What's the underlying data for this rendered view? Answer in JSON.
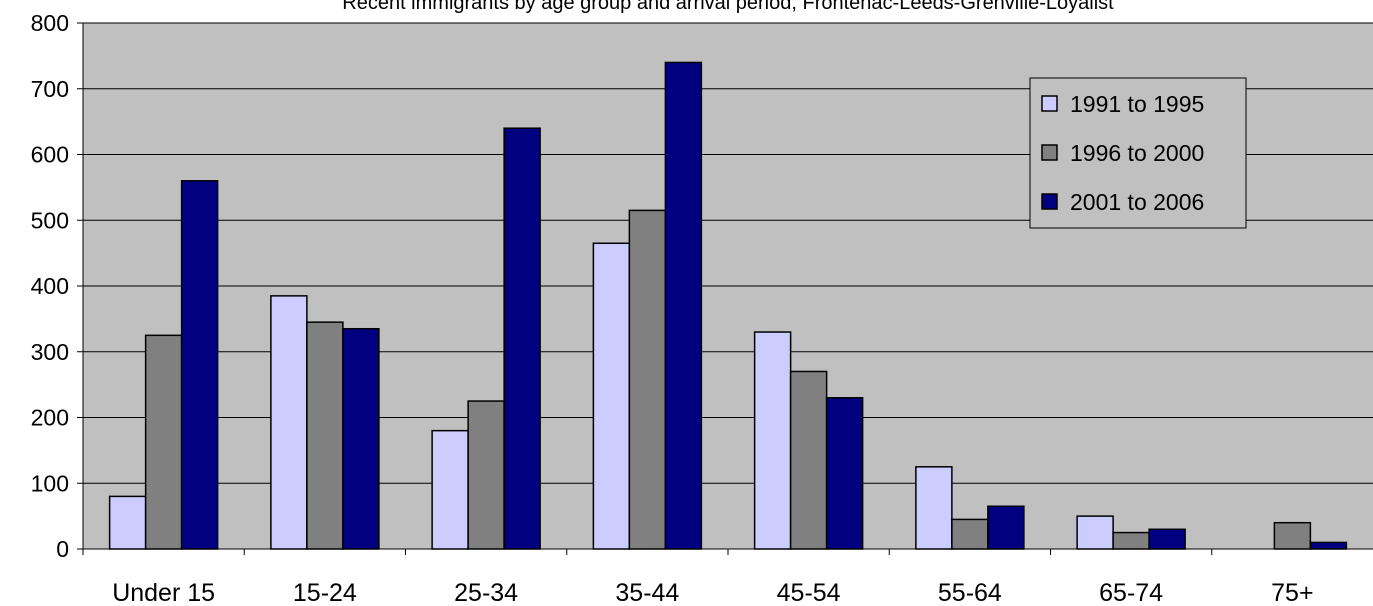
{
  "chart_data": {
    "type": "bar",
    "title": "Recent immigrants by age group and arrival period, Frontenac-Leeds-Grenville-Loyalist",
    "categories": [
      "Under 15",
      "15-24",
      "25-34",
      "35-44",
      "45-54",
      "55-64",
      "65-74",
      "75+"
    ],
    "series": [
      {
        "name": "1991 to 1995",
        "color": "#ccccff",
        "values": [
          80,
          385,
          180,
          465,
          330,
          125,
          50,
          0
        ]
      },
      {
        "name": "1996 to 2000",
        "color": "#808080",
        "values": [
          325,
          345,
          225,
          515,
          270,
          45,
          25,
          40
        ]
      },
      {
        "name": "2001 to 2006",
        "color": "#000080",
        "values": [
          560,
          335,
          640,
          740,
          230,
          65,
          30,
          10
        ]
      }
    ],
    "ylim": [
      0,
      800
    ],
    "yticks": [
      0,
      100,
      200,
      300,
      400,
      500,
      600,
      700,
      800
    ],
    "xlabel": "",
    "ylabel": "",
    "grid": true,
    "legend_position": "top-right",
    "plot_background": "#c0c0c0"
  }
}
